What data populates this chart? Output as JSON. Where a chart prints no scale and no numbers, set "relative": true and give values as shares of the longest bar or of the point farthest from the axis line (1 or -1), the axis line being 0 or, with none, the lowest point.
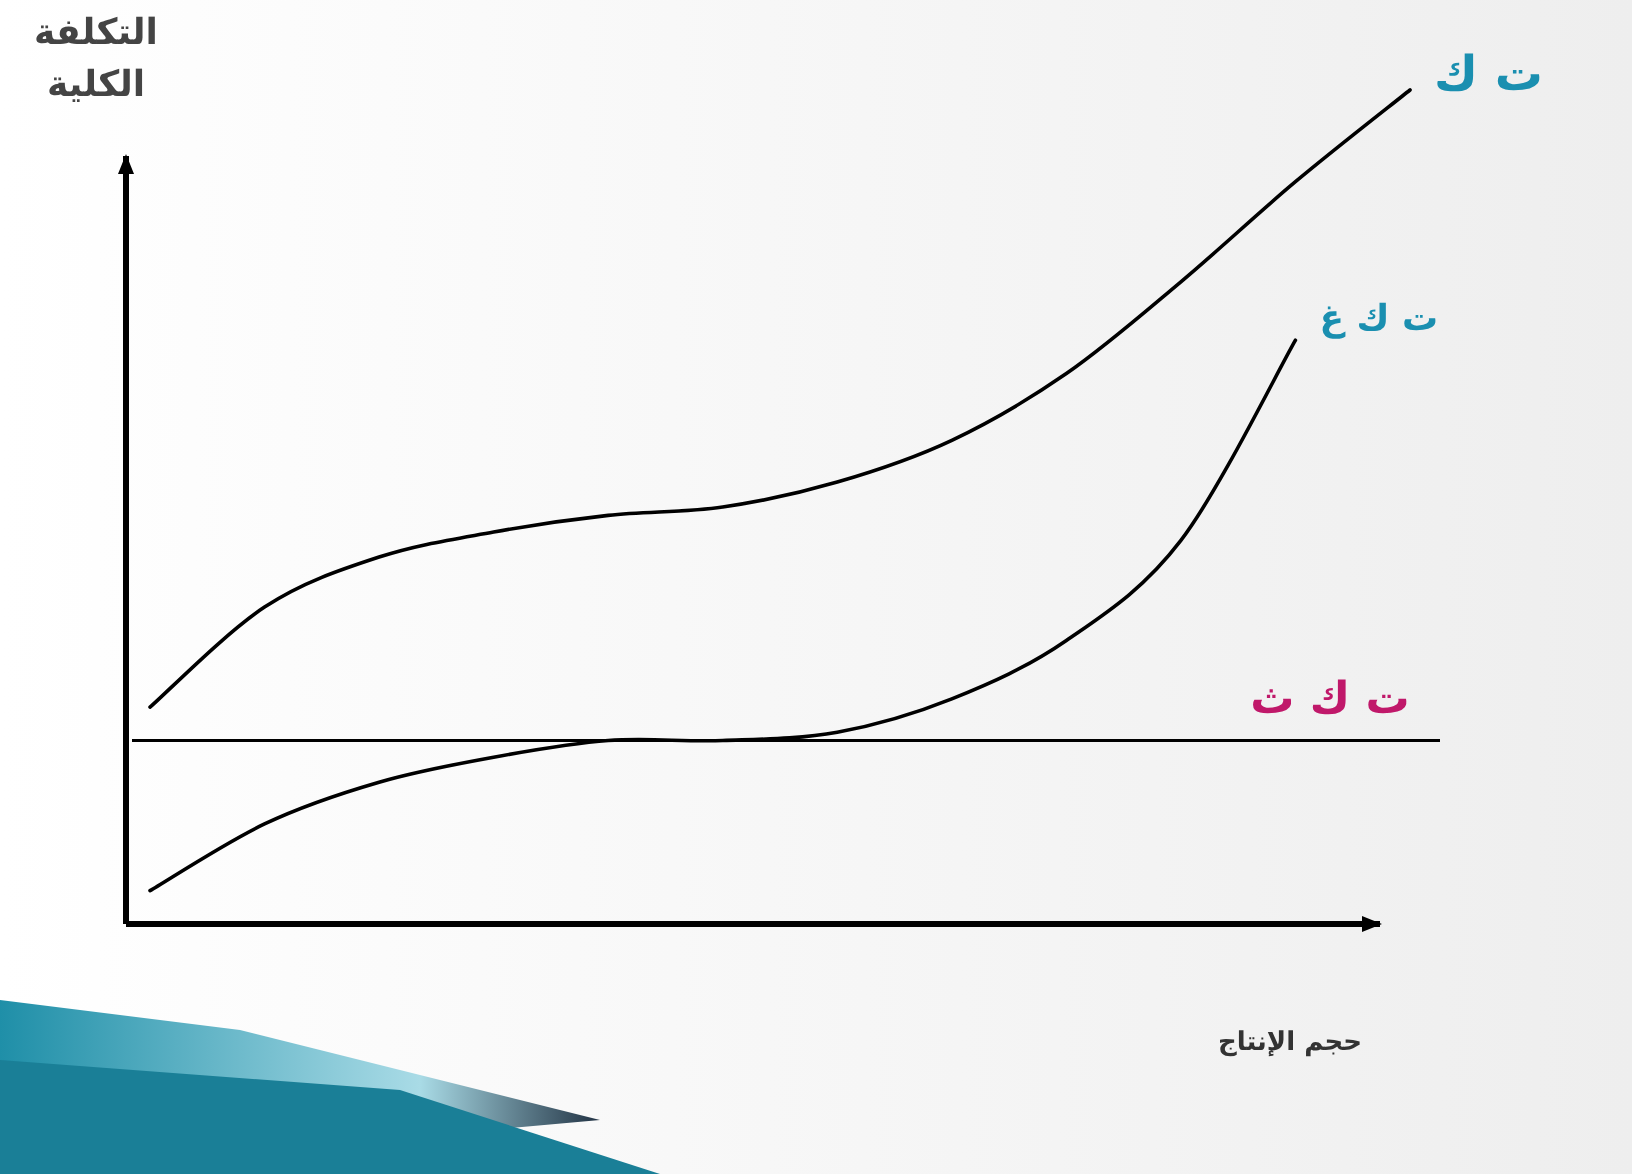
{
  "chart_data": {
    "type": "line",
    "relative": true,
    "ylabel": "التكلفة الكلية",
    "xlabel": "حجم الإنتاج",
    "categories": [
      null,
      null,
      null,
      null,
      null,
      null,
      null,
      null,
      null,
      null,
      null,
      null
    ],
    "series": [
      {
        "name": "ت ك",
        "color": "#000000",
        "values": [
          0.26,
          0.38,
          0.44,
          0.47,
          0.49,
          0.5,
          0.53,
          0.58,
          0.66,
          0.77,
          0.89,
          1
        ]
      },
      {
        "name": "ت ك غ",
        "color": "#000000",
        "values": [
          0.04,
          0.12,
          0.17,
          0.2,
          0.22,
          0.22,
          0.23,
          0.27,
          0.34,
          0.46,
          0.7,
          null
        ]
      }
    ],
    "ref_lines": [
      {
        "axis": "y",
        "value": 0.22,
        "label": "ت ك ث",
        "color": "#000000"
      }
    ]
  }
}
